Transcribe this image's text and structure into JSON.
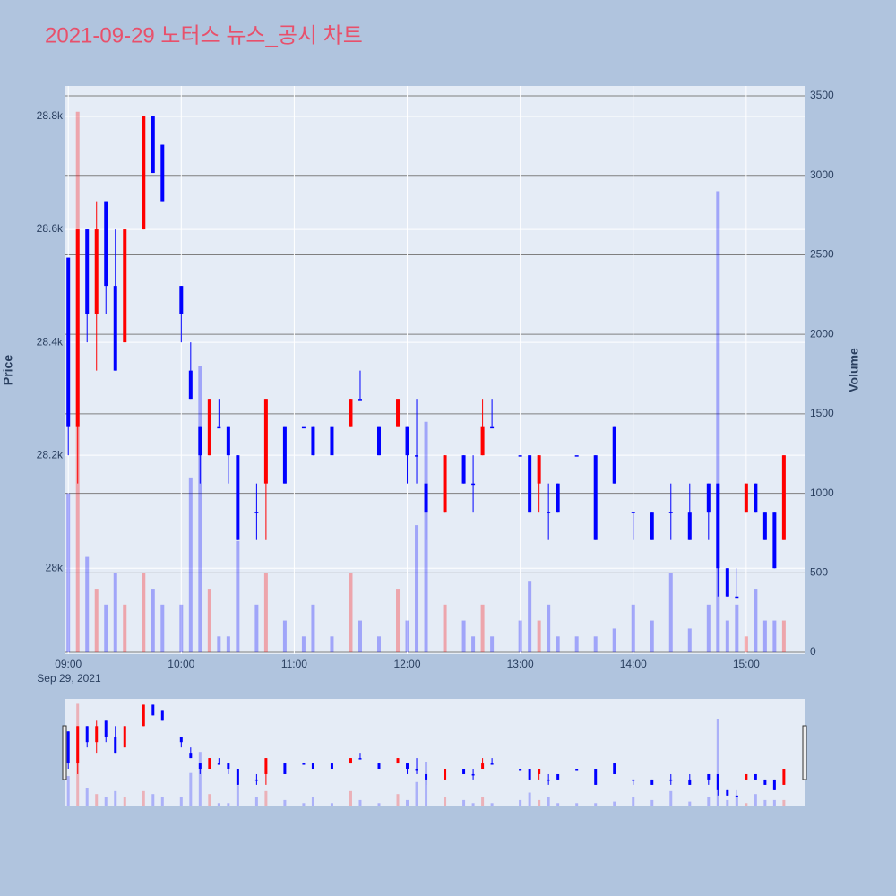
{
  "chart_data": {
    "type": "candlestick",
    "title": "2021-09-29 노터스 뉴스_공시 차트",
    "y_title": "Price",
    "y2_title": "Volume",
    "x_date_label": "Sep 29, 2021",
    "increasing_color": "#ff0000",
    "decreasing_color": "#0000ff",
    "x": [
      "09:00",
      "09:05",
      "09:10",
      "09:15",
      "09:20",
      "09:25",
      "09:30",
      "09:40",
      "09:45",
      "09:50",
      "10:00",
      "10:05",
      "10:10",
      "10:15",
      "10:20",
      "10:25",
      "10:30",
      "10:40",
      "10:45",
      "10:55",
      "11:05",
      "11:10",
      "11:20",
      "11:30",
      "11:35",
      "11:45",
      "11:55",
      "12:00",
      "12:05",
      "12:10",
      "12:20",
      "12:30",
      "12:35",
      "12:40",
      "12:45",
      "13:00",
      "13:05",
      "13:10",
      "13:15",
      "13:20",
      "13:30",
      "13:40",
      "13:50",
      "14:00",
      "14:10",
      "14:20",
      "14:30",
      "14:40",
      "14:45",
      "14:50",
      "14:55",
      "15:00",
      "15:05",
      "15:10",
      "15:15",
      "15:20"
    ],
    "open": [
      28550,
      28250,
      28600,
      28450,
      28650,
      28500,
      28400,
      28600,
      28800,
      28750,
      28500,
      28350,
      28250,
      28200,
      28250,
      28250,
      28200,
      28100,
      28150,
      28250,
      28250,
      28250,
      28250,
      28250,
      28300,
      28250,
      28250,
      28250,
      28200,
      28150,
      28100,
      28200,
      28150,
      28200,
      28250,
      28200,
      28200,
      28150,
      28100,
      28150,
      28200,
      28200,
      28250,
      28100,
      28100,
      28100,
      28100,
      28150,
      28150,
      28000,
      27950,
      28100,
      28150,
      28100,
      28100,
      28050
    ],
    "high": [
      28550,
      28600,
      28600,
      28650,
      28650,
      28600,
      28600,
      28800,
      28800,
      28750,
      28500,
      28400,
      28250,
      28300,
      28300,
      28250,
      28200,
      28150,
      28300,
      28250,
      28250,
      28250,
      28250,
      28300,
      28350,
      28250,
      28300,
      28250,
      28300,
      28150,
      28200,
      28200,
      28200,
      28300,
      28300,
      28200,
      28200,
      28200,
      28150,
      28150,
      28200,
      28200,
      28250,
      28100,
      28100,
      28150,
      28150,
      28150,
      28150,
      28000,
      28000,
      28150,
      28150,
      28100,
      28100,
      28200
    ],
    "low": [
      28200,
      28150,
      28400,
      28350,
      28450,
      28350,
      28400,
      28600,
      28700,
      28650,
      28400,
      28300,
      28150,
      28200,
      28250,
      28150,
      28050,
      28050,
      28050,
      28150,
      28250,
      28200,
      28200,
      28250,
      28300,
      28200,
      28250,
      28150,
      28150,
      28050,
      28100,
      28150,
      28100,
      28200,
      28250,
      28200,
      28100,
      28100,
      28050,
      28100,
      28200,
      28050,
      28150,
      28050,
      28050,
      28050,
      28050,
      28050,
      27950,
      27950,
      27950,
      28100,
      28100,
      28050,
      28000,
      28050
    ],
    "close": [
      28250,
      28600,
      28450,
      28600,
      28500,
      28350,
      28600,
      28800,
      28700,
      28650,
      28450,
      28300,
      28200,
      28300,
      28250,
      28200,
      28050,
      28100,
      28300,
      28150,
      28250,
      28200,
      28200,
      28300,
      28300,
      28200,
      28300,
      28200,
      28200,
      28100,
      28200,
      28150,
      28150,
      28250,
      28250,
      28200,
      28100,
      28200,
      28100,
      28100,
      28200,
      28050,
      28150,
      28100,
      28050,
      28100,
      28050,
      28100,
      28000,
      27950,
      27950,
      28150,
      28100,
      28050,
      28000,
      28200
    ],
    "volume": [
      1000,
      3400,
      600,
      400,
      300,
      500,
      300,
      500,
      400,
      300,
      300,
      1100,
      1800,
      400,
      100,
      100,
      700,
      300,
      500,
      200,
      100,
      300,
      100,
      500,
      200,
      100,
      400,
      200,
      800,
      1450,
      300,
      200,
      100,
      300,
      100,
      200,
      450,
      200,
      300,
      100,
      100,
      100,
      150,
      300,
      200,
      500,
      150,
      300,
      2900,
      200,
      300,
      100,
      400,
      200,
      200,
      200
    ],
    "xlim": [
      "08:58",
      "15:31"
    ],
    "xticks": [
      "09:00",
      "10:00",
      "11:00",
      "12:00",
      "13:00",
      "14:00",
      "15:00"
    ],
    "ylim": [
      27848,
      28854
    ],
    "yticks": [
      {
        "value": 28000,
        "label": "28k"
      },
      {
        "value": 28200,
        "label": "28.2k"
      },
      {
        "value": 28400,
        "label": "28.4k"
      },
      {
        "value": 28600,
        "label": "28.6k"
      },
      {
        "value": 28800,
        "label": "28.8k"
      }
    ],
    "y2lim": [
      -11,
      3562
    ],
    "y2ticks": [
      0,
      500,
      1000,
      1500,
      2000,
      2500,
      3000,
      3500
    ],
    "grid": true
  }
}
